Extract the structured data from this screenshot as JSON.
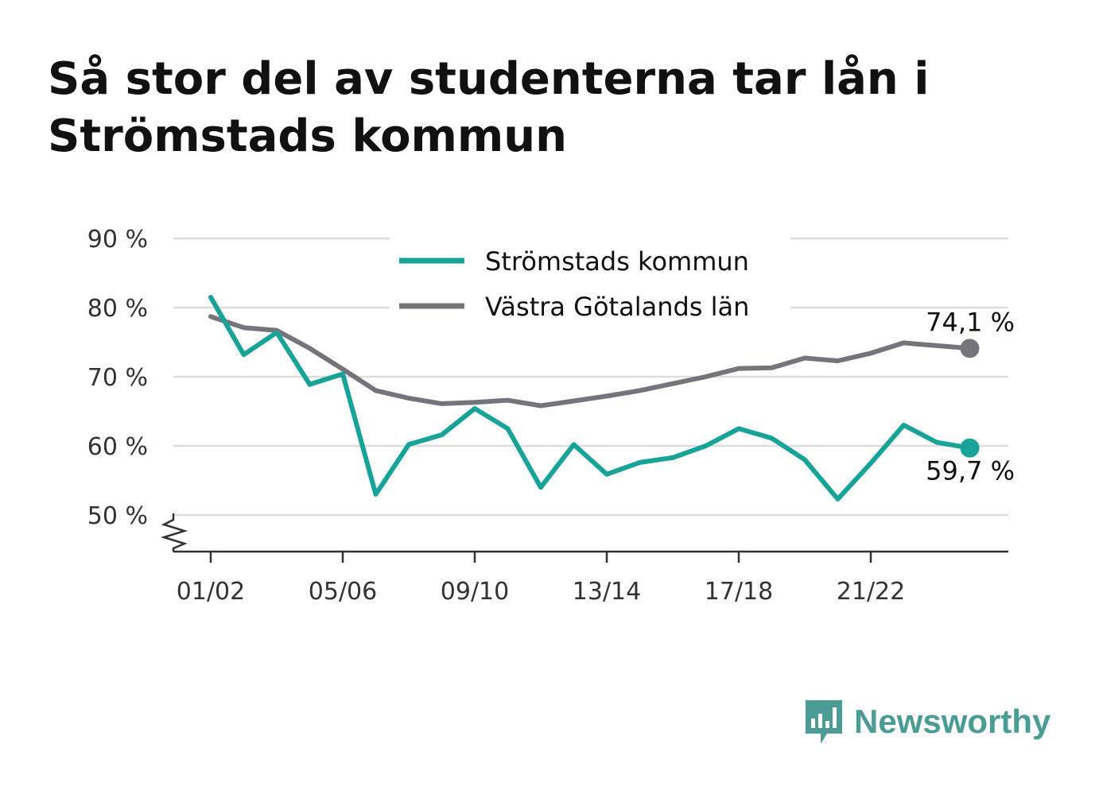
{
  "title": "Så stor del av studenterna tar lån i Strömstads kommun",
  "chart_data": {
    "type": "line",
    "ylim": [
      45,
      90
    ],
    "y_ticks": [
      50,
      60,
      70,
      80,
      90
    ],
    "y_tick_labels": [
      "50 %",
      "60 %",
      "70 %",
      "80 %",
      "90 %"
    ],
    "y_axis_break": true,
    "x": [
      "01/02",
      "02/03",
      "03/04",
      "04/05",
      "05/06",
      "06/07",
      "07/08",
      "08/09",
      "09/10",
      "10/11",
      "11/12",
      "12/13",
      "13/14",
      "14/15",
      "15/16",
      "16/17",
      "17/18",
      "18/19",
      "19/20",
      "20/21",
      "21/22",
      "22/23",
      "23/24",
      "24/25"
    ],
    "x_tick_labels": [
      "01/02",
      "05/06",
      "09/10",
      "13/14",
      "17/18",
      "21/22"
    ],
    "grid": true,
    "legend_position": "top-center",
    "series": [
      {
        "name": "Strömstads kommun",
        "color": "#17a398",
        "values": [
          81.5,
          73.2,
          76.4,
          68.9,
          70.4,
          53.0,
          60.2,
          61.6,
          65.4,
          62.5,
          54.0,
          60.2,
          55.9,
          57.6,
          58.3,
          60.0,
          62.5,
          61.1,
          58.0,
          52.3,
          57.5,
          63.0,
          60.5,
          59.7
        ],
        "end_label": "59,7 %"
      },
      {
        "name": "Västra Götalands län",
        "color": "#75747b",
        "values": [
          78.7,
          77.1,
          76.7,
          74.1,
          71.1,
          68.0,
          66.9,
          66.1,
          66.3,
          66.6,
          65.8,
          66.5,
          67.2,
          68.0,
          69.0,
          70.0,
          71.2,
          71.3,
          72.7,
          72.3,
          73.4,
          74.9,
          74.5,
          74.1
        ],
        "end_label": "74,1 %"
      }
    ]
  },
  "logo": {
    "text": "Newsworthy",
    "icon": "bar-chart-speech-bubble-icon",
    "color": "#4a9c94"
  }
}
